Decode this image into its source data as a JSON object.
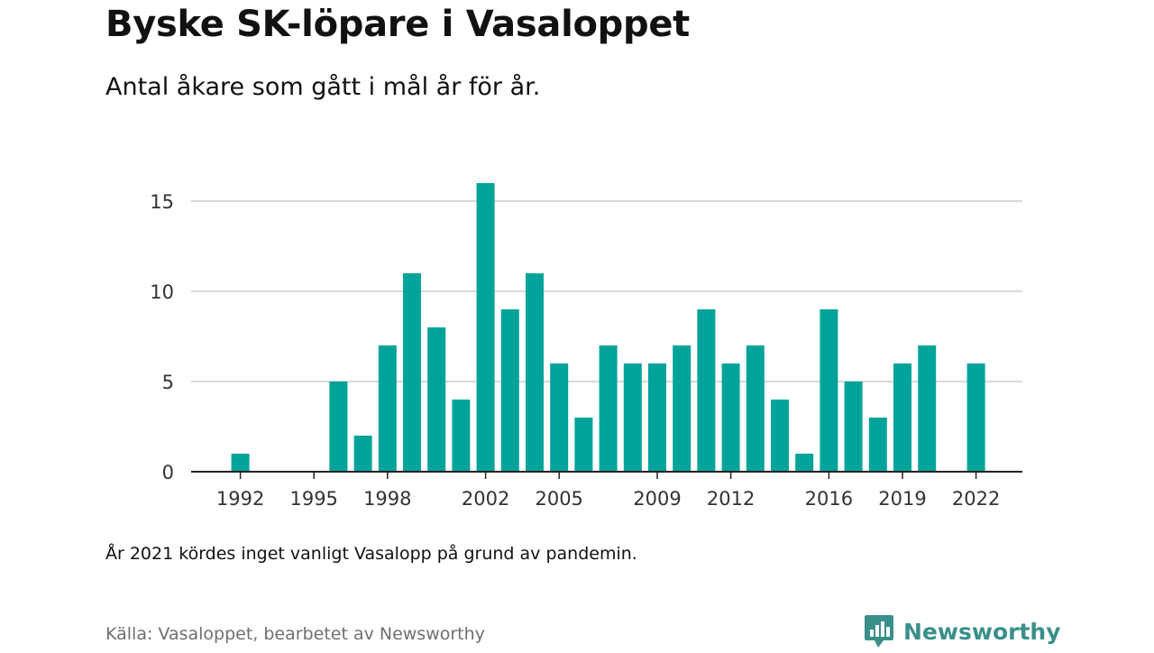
{
  "header": {
    "title": "Byske SK-löpare i Vasaloppet",
    "subtitle": "Antal åkare som gått i mål år för år."
  },
  "footer": {
    "note": "År 2021 kördes inget vanligt Vasalopp på grund av pandemin.",
    "source": "Källa: Vasaloppet, bearbetet av Newsworthy",
    "brand": "Newsworthy",
    "brand_icon": "newsworthy-chart-bubble-icon"
  },
  "colors": {
    "bar": "#00a39a",
    "grid": "#d9d9d9",
    "axis": "#222222",
    "brand": "#3a8f8a"
  },
  "chart_data": {
    "type": "bar",
    "x": [
      1992,
      1993,
      1994,
      1995,
      1996,
      1997,
      1998,
      1999,
      2000,
      2001,
      2002,
      2003,
      2004,
      2005,
      2006,
      2007,
      2008,
      2009,
      2010,
      2011,
      2012,
      2013,
      2014,
      2015,
      2016,
      2017,
      2018,
      2019,
      2020,
      2021,
      2022
    ],
    "values": [
      1,
      0,
      0,
      0,
      5,
      2,
      7,
      11,
      8,
      4,
      16,
      9,
      11,
      6,
      3,
      7,
      6,
      6,
      7,
      9,
      6,
      7,
      4,
      1,
      9,
      5,
      3,
      6,
      7,
      0,
      6
    ],
    "x_tick_labels": [
      "1992",
      "1995",
      "1998",
      "2002",
      "2005",
      "2009",
      "2012",
      "2016",
      "2019",
      "2022"
    ],
    "y_ticks": [
      0,
      5,
      10,
      15
    ],
    "ylim": [
      0,
      16
    ],
    "xlabel": "",
    "ylabel": "",
    "grid": true,
    "legend": "none"
  }
}
